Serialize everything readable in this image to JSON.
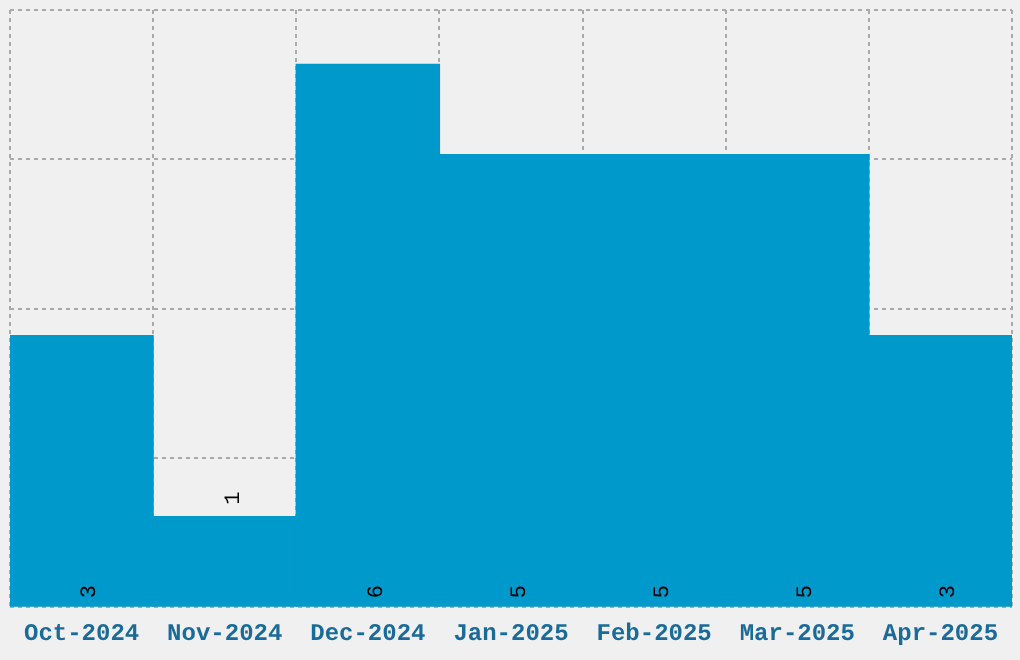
{
  "chart_data": {
    "type": "bar",
    "categories": [
      "Oct-2024",
      "Nov-2024",
      "Dec-2024",
      "Jan-2025",
      "Feb-2025",
      "Mar-2025",
      "Apr-2025"
    ],
    "values": [
      3,
      1,
      6,
      5,
      5,
      5,
      3
    ],
    "color": "#0099cc",
    "ylim": [
      0,
      6.6
    ],
    "yticks": [
      {
        "value": 0,
        "label": null
      },
      {
        "value": 1.65,
        "label": null
      },
      {
        "value": 3.3,
        "label": null
      },
      {
        "value": 4.95,
        "label": null
      },
      {
        "value": 6.6,
        "label": null
      }
    ],
    "tick_labels": "x",
    "grid": true,
    "data_labels": true,
    "legend": false
  }
}
